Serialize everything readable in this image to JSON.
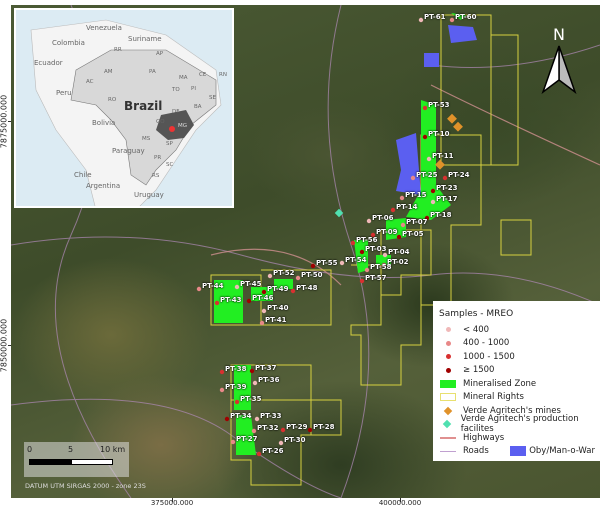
{
  "map": {
    "datum": "DATUM UTM SIRGAS 2000 - zone 23S",
    "x_ticks": [
      "375000.000",
      "400000.000"
    ],
    "y_ticks": [
      "7875000.000",
      "7850000.000"
    ],
    "north_label": "N",
    "scale": {
      "labels": [
        "0",
        "5",
        "10 km"
      ]
    },
    "samples": [
      "PT-61",
      "PT-60",
      "PT-53",
      "PT-10",
      "PT-11",
      "PT-25",
      "PT-24",
      "PT-23",
      "PT-17",
      "PT-15",
      "PT-14",
      "PT-18",
      "PT-06",
      "PT-07",
      "PT-09",
      "PT-05",
      "PT-04",
      "PT-02",
      "PT-56",
      "PT-03",
      "PT-54",
      "PT-58",
      "PT-57",
      "PT-55",
      "PT-52",
      "PT-50",
      "PT-48",
      "PT-49",
      "PT-45",
      "PT-44",
      "PT-43",
      "PT-46",
      "PT-40",
      "PT-41",
      "PT-38",
      "PT-37",
      "PT-36",
      "PT-39",
      "PT-35",
      "PT-34",
      "PT-33",
      "PT-32",
      "PT-29",
      "PT-28",
      "PT-30",
      "PT-27",
      "PT-26"
    ]
  },
  "inset": {
    "title": "Brazil",
    "countries": [
      "Venezuela",
      "Colombia",
      "Suriname",
      "Ecuador",
      "Peru",
      "Bolivia",
      "Paraguay",
      "Chile",
      "Argentina",
      "Uruguay"
    ],
    "states": [
      "RR",
      "AP",
      "AM",
      "PA",
      "MA",
      "CE",
      "RN",
      "PI",
      "AC",
      "RO",
      "TO",
      "BA",
      "SE",
      "DF",
      "GO",
      "MG",
      "MS",
      "SP",
      "PR",
      "SC",
      "RS"
    ]
  },
  "legend": {
    "title": "Samples - MREO",
    "items": [
      {
        "label": "< 400",
        "color": "#f0b8b8"
      },
      {
        "label": "400 -  1000",
        "color": "#e88888"
      },
      {
        "label": "1000 -  1500",
        "color": "#d83030"
      },
      {
        "label": "≥  1500",
        "color": "#a00000"
      },
      {
        "label": "Mineralised Zone",
        "color": "#22ee22"
      },
      {
        "label": "Mineral Rights",
        "color": "#e8e070"
      },
      {
        "label": "Verde Agritech's mines",
        "color": "#e0922a"
      },
      {
        "label": "Verde Agritech's production facilites",
        "color": "#50e0b0"
      },
      {
        "label": "Highways",
        "color": "#e09090"
      },
      {
        "label": "Roads",
        "color": "#c0a0d0"
      }
    ],
    "oby_label": "Oby/Man-o-War",
    "oby_color": "#5b5ff0"
  }
}
